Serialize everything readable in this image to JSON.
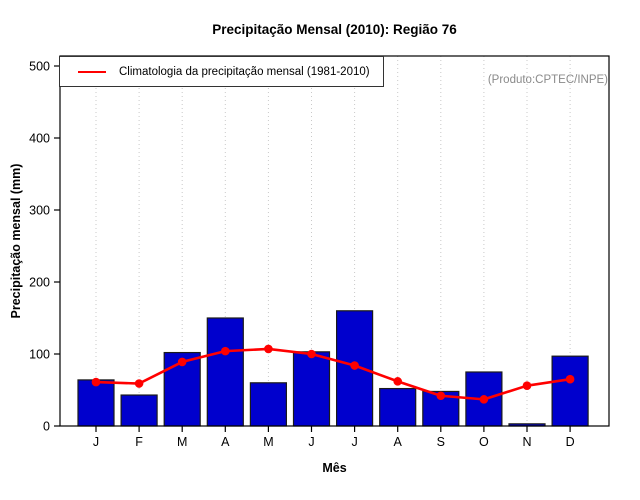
{
  "chart_data": {
    "type": "bar",
    "title": "Precipitação Mensal (2010): Região 76",
    "xlabel": "Mês",
    "ylabel": "Precipitação mensal (mm)",
    "annotation": "(Produto:CPTEC/INPE)",
    "categories": [
      "J",
      "F",
      "M",
      "A",
      "M",
      "J",
      "J",
      "A",
      "S",
      "O",
      "N",
      "D"
    ],
    "yticks": [
      0,
      100,
      200,
      300,
      400,
      500
    ],
    "ylim": [
      0,
      500
    ],
    "grid": "vertical-dotted",
    "legend_position": "top-left",
    "series": [
      {
        "name": "Precipitação mensal (2010)",
        "type": "bar",
        "color": "#0000CD",
        "values": [
          64,
          43,
          102,
          150,
          60,
          103,
          160,
          52,
          48,
          75,
          3,
          97
        ]
      },
      {
        "name": "Climatologia da precipitação mensal (1981-2010)",
        "type": "line",
        "color": "#FF0000",
        "values": [
          61,
          59,
          89,
          104,
          107,
          100,
          84,
          62,
          42,
          37,
          56,
          65
        ]
      }
    ],
    "colors": {
      "bar_fill": "#0000CD",
      "bar_border": "#1a1a1a",
      "line": "#FF0000",
      "grid": "#C9C9C9",
      "axis": "#000000",
      "annotation_text": "#8A8A8A"
    }
  }
}
